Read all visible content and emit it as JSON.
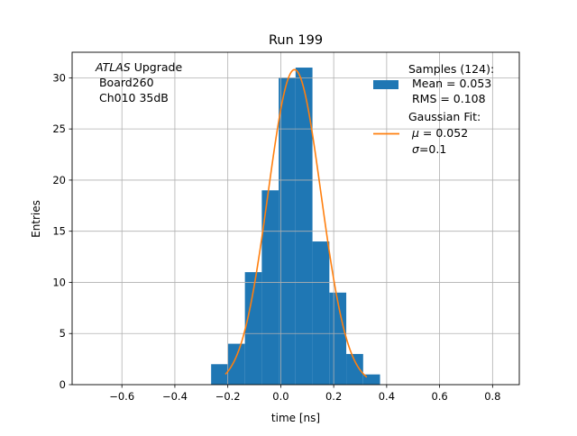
{
  "chart_data": {
    "type": "bar",
    "title": "Run 199",
    "xlabel": "time [ns]",
    "ylabel": "Entries",
    "xlim": [
      -0.788,
      0.901
    ],
    "ylim": [
      0,
      32.5
    ],
    "xticks": [
      -0.6,
      -0.4,
      -0.2,
      0.0,
      0.2,
      0.4,
      0.6,
      0.8
    ],
    "xtick_labels": [
      "−0.6",
      "−0.4",
      "−0.2",
      "0.0",
      "0.2",
      "0.4",
      "0.6",
      "0.8"
    ],
    "yticks": [
      0,
      5,
      10,
      15,
      20,
      25,
      30
    ],
    "ytick_labels": [
      "0",
      "5",
      "10",
      "15",
      "20",
      "25",
      "30"
    ],
    "grid": true,
    "histogram": {
      "name": "Samples",
      "color": "#1f77b4",
      "bin_start": -0.263,
      "bin_width": 0.0638,
      "values": [
        2,
        4,
        11,
        19,
        30,
        31,
        14,
        9,
        3,
        1
      ]
    },
    "fit": {
      "name": "Gaussian Fit",
      "color": "#ff7f0e",
      "mu": 0.052,
      "sigma": 0.1,
      "amplitude": 30.8,
      "x_range": [
        -0.209,
        0.325
      ]
    },
    "annotation": {
      "line1_italic": "ATLAS",
      "line1_rest": " Upgrade",
      "line2": " Board260",
      "line3": " Ch010 35dB"
    },
    "legend": {
      "placement": "top-right",
      "samples_lines": [
        "Samples (124):",
        " Mean = 0.053",
        " RMS = 0.108"
      ],
      "fit_title": "Gaussian Fit:",
      "fit_mu_symbol": "μ",
      "fit_mu_value": " = 0.052",
      "fit_sigma_symbol": "σ",
      "fit_sigma_value": "=0.1"
    }
  }
}
